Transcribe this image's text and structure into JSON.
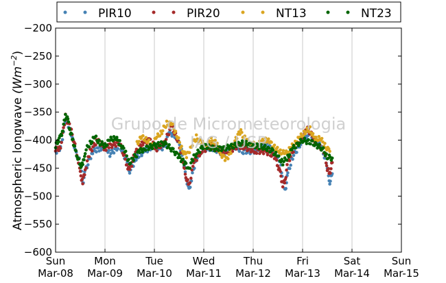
{
  "chart_data": {
    "type": "scatter",
    "title": "",
    "xlabel": "",
    "ylabel": "Atmospheric longwave (Wm⁻²)",
    "ylabel_text": "Atmospheric longwave",
    "ylabel_units": "(Wm",
    "ylabel_exp": "−2",
    "ylabel_close": ")",
    "ylim": [
      -600,
      -200
    ],
    "yticks": [
      -200,
      -250,
      -300,
      -350,
      -400,
      -450,
      -500,
      -550,
      -600
    ],
    "ytick_labels": [
      "−200",
      "−250",
      "−300",
      "−350",
      "−400",
      "−450",
      "−500",
      "−550",
      "−600"
    ],
    "xlim": [
      0,
      7
    ],
    "xticks": [
      {
        "x": 0,
        "day": "Sun",
        "date": "Mar-08"
      },
      {
        "x": 1,
        "day": "Mon",
        "date": "Mar-09"
      },
      {
        "x": 2,
        "day": "Tue",
        "date": "Mar-10"
      },
      {
        "x": 3,
        "day": "Wed",
        "date": "Mar-11"
      },
      {
        "x": 4,
        "day": "Thu",
        "date": "Mar-12"
      },
      {
        "x": 5,
        "day": "Fri",
        "date": "Mar-13"
      },
      {
        "x": 6,
        "day": "Sat",
        "date": "Mar-14"
      },
      {
        "x": 7,
        "day": "Sun",
        "date": "Mar-15"
      }
    ],
    "grid": "vertical",
    "legend_position": "top",
    "watermark": [
      "Grupo de Micrometeorologia",
      "IAG / USP"
    ],
    "series": [
      {
        "name": "PIR10",
        "color": "#4682b4",
        "points": [
          [
            0.0,
            -420
          ],
          [
            0.1,
            -415
          ],
          [
            0.2,
            -365
          ],
          [
            0.3,
            -380
          ],
          [
            0.4,
            -420
          ],
          [
            0.5,
            -440
          ],
          [
            0.55,
            -478
          ],
          [
            0.6,
            -455
          ],
          [
            0.75,
            -420
          ],
          [
            0.9,
            -415
          ],
          [
            1.0,
            -410
          ],
          [
            1.1,
            -425
          ],
          [
            1.3,
            -410
          ],
          [
            1.45,
            -440
          ],
          [
            1.5,
            -455
          ],
          [
            1.65,
            -430
          ],
          [
            1.8,
            -420
          ],
          [
            2.0,
            -410
          ],
          [
            2.2,
            -415
          ],
          [
            2.3,
            -385
          ],
          [
            2.45,
            -395
          ],
          [
            2.55,
            -420
          ],
          [
            2.6,
            -445
          ],
          [
            2.65,
            -470
          ],
          [
            2.7,
            -490
          ],
          [
            2.75,
            -470
          ],
          [
            2.85,
            -430
          ],
          [
            3.0,
            -415
          ],
          [
            3.2,
            -415
          ],
          [
            3.4,
            -425
          ],
          [
            3.6,
            -410
          ],
          [
            3.8,
            -420
          ],
          [
            4.0,
            -420
          ],
          [
            4.2,
            -410
          ],
          [
            4.3,
            -410
          ],
          [
            4.45,
            -425
          ],
          [
            4.55,
            -440
          ],
          [
            4.6,
            -470
          ],
          [
            4.65,
            -490
          ],
          [
            4.7,
            -460
          ],
          [
            4.8,
            -430
          ],
          [
            5.0,
            -400
          ],
          [
            5.15,
            -390
          ],
          [
            5.3,
            -405
          ],
          [
            5.4,
            -415
          ],
          [
            5.5,
            -450
          ],
          [
            5.55,
            -475
          ],
          [
            5.6,
            -460
          ]
        ]
      },
      {
        "name": "PIR20",
        "color": "#a52a2a",
        "points": [
          [
            0.0,
            -418
          ],
          [
            0.1,
            -412
          ],
          [
            0.2,
            -358
          ],
          [
            0.3,
            -378
          ],
          [
            0.45,
            -430
          ],
          [
            0.5,
            -460
          ],
          [
            0.55,
            -475
          ],
          [
            0.6,
            -452
          ],
          [
            0.7,
            -420
          ],
          [
            0.85,
            -400
          ],
          [
            1.0,
            -415
          ],
          [
            1.1,
            -410
          ],
          [
            1.3,
            -405
          ],
          [
            1.45,
            -445
          ],
          [
            1.5,
            -455
          ],
          [
            1.6,
            -425
          ],
          [
            1.75,
            -405
          ],
          [
            1.9,
            -400
          ],
          [
            2.05,
            -415
          ],
          [
            2.2,
            -405
          ],
          [
            2.35,
            -375
          ],
          [
            2.45,
            -395
          ],
          [
            2.55,
            -425
          ],
          [
            2.6,
            -450
          ],
          [
            2.65,
            -468
          ],
          [
            2.7,
            -482
          ],
          [
            2.8,
            -440
          ],
          [
            2.95,
            -420
          ],
          [
            3.15,
            -410
          ],
          [
            3.35,
            -420
          ],
          [
            3.5,
            -420
          ],
          [
            3.7,
            -410
          ],
          [
            3.9,
            -415
          ],
          [
            4.05,
            -420
          ],
          [
            4.25,
            -420
          ],
          [
            4.45,
            -430
          ],
          [
            4.5,
            -445
          ],
          [
            4.55,
            -460
          ],
          [
            4.6,
            -480
          ],
          [
            4.65,
            -470
          ],
          [
            4.7,
            -440
          ],
          [
            4.85,
            -410
          ],
          [
            5.0,
            -395
          ],
          [
            5.1,
            -380
          ],
          [
            5.25,
            -400
          ],
          [
            5.35,
            -410
          ],
          [
            5.45,
            -425
          ],
          [
            5.5,
            -450
          ],
          [
            5.55,
            -460
          ],
          [
            5.6,
            -440
          ]
        ]
      },
      {
        "name": "NT13",
        "color": "#daa520",
        "points": [
          [
            1.65,
            -405
          ],
          [
            1.75,
            -395
          ],
          [
            1.85,
            -400
          ],
          [
            1.95,
            -410
          ],
          [
            2.05,
            -395
          ],
          [
            2.15,
            -385
          ],
          [
            2.25,
            -370
          ],
          [
            2.35,
            -372
          ],
          [
            2.45,
            -390
          ],
          [
            2.55,
            -415
          ],
          [
            2.65,
            -430
          ],
          [
            2.75,
            -410
          ],
          [
            2.85,
            -395
          ],
          [
            2.95,
            -405
          ],
          [
            3.05,
            -410
          ],
          [
            3.15,
            -400
          ],
          [
            3.25,
            -405
          ],
          [
            3.35,
            -425
          ],
          [
            3.45,
            -435
          ],
          [
            3.55,
            -420
          ],
          [
            3.65,
            -395
          ],
          [
            3.75,
            -385
          ],
          [
            3.85,
            -400
          ],
          [
            3.95,
            -405
          ],
          [
            4.05,
            -410
          ],
          [
            4.15,
            -405
          ],
          [
            4.25,
            -398
          ],
          [
            4.35,
            -405
          ],
          [
            4.45,
            -415
          ],
          [
            4.55,
            -420
          ],
          [
            4.65,
            -425
          ],
          [
            4.75,
            -415
          ],
          [
            4.85,
            -405
          ],
          [
            4.95,
            -395
          ],
          [
            5.05,
            -385
          ],
          [
            5.15,
            -380
          ],
          [
            5.25,
            -400
          ],
          [
            5.35,
            -395
          ],
          [
            5.45,
            -410
          ],
          [
            5.55,
            -420
          ]
        ]
      },
      {
        "name": "NT23",
        "color": "#006400",
        "points": [
          [
            0.0,
            -410
          ],
          [
            0.05,
            -400
          ],
          [
            0.1,
            -395
          ],
          [
            0.15,
            -380
          ],
          [
            0.2,
            -355
          ],
          [
            0.25,
            -365
          ],
          [
            0.3,
            -385
          ],
          [
            0.35,
            -400
          ],
          [
            0.4,
            -420
          ],
          [
            0.45,
            -430
          ],
          [
            0.5,
            -445
          ],
          [
            0.55,
            -445
          ],
          [
            0.6,
            -420
          ],
          [
            0.7,
            -405
          ],
          [
            0.8,
            -395
          ],
          [
            0.9,
            -405
          ],
          [
            1.0,
            -410
          ],
          [
            1.1,
            -400
          ],
          [
            1.2,
            -395
          ],
          [
            1.3,
            -405
          ],
          [
            1.4,
            -420
          ],
          [
            1.5,
            -440
          ],
          [
            1.6,
            -430
          ],
          [
            1.7,
            -420
          ],
          [
            1.8,
            -415
          ],
          [
            2.0,
            -410
          ],
          [
            2.2,
            -405
          ],
          [
            2.4,
            -420
          ],
          [
            2.5,
            -430
          ],
          [
            2.6,
            -440
          ],
          [
            2.7,
            -450
          ],
          [
            2.8,
            -430
          ],
          [
            3.0,
            -410
          ],
          [
            3.2,
            -415
          ],
          [
            3.4,
            -415
          ],
          [
            3.6,
            -410
          ],
          [
            3.8,
            -405
          ],
          [
            4.0,
            -410
          ],
          [
            4.2,
            -412
          ],
          [
            4.4,
            -420
          ],
          [
            4.5,
            -430
          ],
          [
            4.6,
            -440
          ],
          [
            4.7,
            -430
          ],
          [
            4.8,
            -415
          ],
          [
            5.0,
            -400
          ],
          [
            5.2,
            -405
          ],
          [
            5.4,
            -415
          ],
          [
            5.5,
            -430
          ],
          [
            5.6,
            -432
          ]
        ]
      }
    ]
  }
}
